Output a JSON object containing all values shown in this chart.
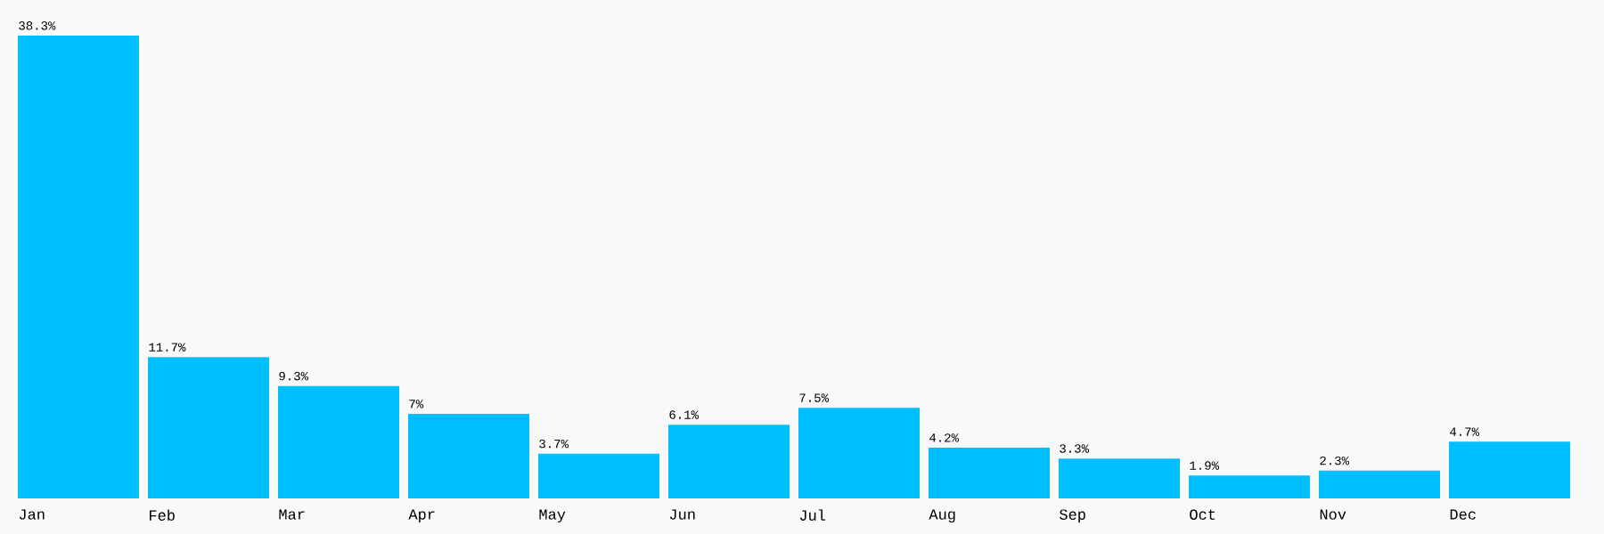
{
  "chart_data": {
    "type": "bar",
    "categories": [
      "Jan",
      "Feb",
      "Mar",
      "Apr",
      "May",
      "Jun",
      "Jul",
      "Aug",
      "Sep",
      "Oct",
      "Nov",
      "Dec"
    ],
    "values": [
      38.3,
      11.7,
      9.3,
      7,
      3.7,
      6.1,
      7.5,
      4.2,
      3.3,
      1.9,
      2.3,
      4.7
    ],
    "value_labels": [
      "38.3%",
      "11.7%",
      "9.3%",
      "7%",
      "3.7%",
      "6.1%",
      "7.5%",
      "4.2%",
      "3.3%",
      "1.9%",
      "2.3%",
      "4.7%"
    ],
    "color": "#00bfff"
  }
}
